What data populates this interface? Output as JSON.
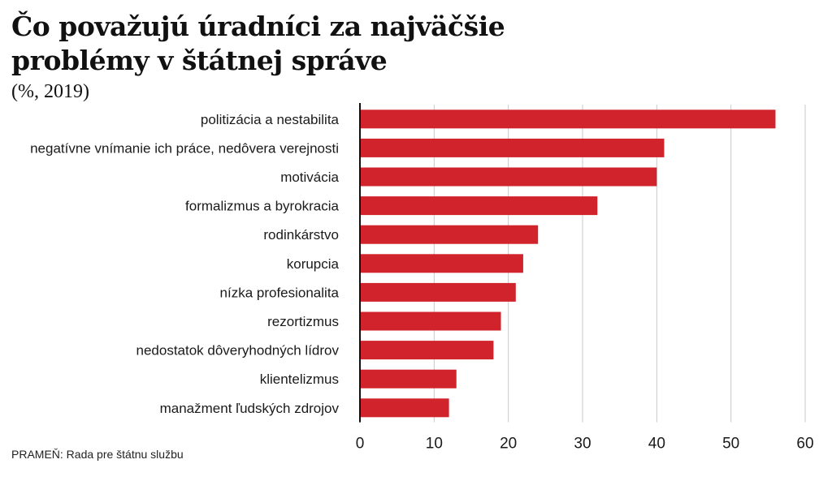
{
  "chart_data": {
    "type": "bar",
    "orientation": "horizontal",
    "title": "Čo považujú úradníci za najväčšie problémy v štátnej správe",
    "subtitle": "(%, 2019)",
    "categories": [
      "politizácia a nestabilita",
      "negatívne vnímanie ich práce, nedôvera verejnosti",
      "motivácia",
      "formalizmus a byrokracia",
      "rodinkárstvo",
      "korupcia",
      "nízka profesionalita",
      "rezortizmus",
      "nedostatok dôveryhodných lídrov",
      "klientelizmus",
      "manažment ľudských zdrojov"
    ],
    "values": [
      56,
      41,
      40,
      32,
      24,
      22,
      21,
      19,
      18,
      13,
      12
    ],
    "xlim": [
      0,
      60
    ],
    "xticks": [
      0,
      10,
      20,
      30,
      40,
      50,
      60
    ],
    "grid": true,
    "bar_color": "#d0232b"
  },
  "source": "PRAMEŇ: Rada pre štátnu službu"
}
